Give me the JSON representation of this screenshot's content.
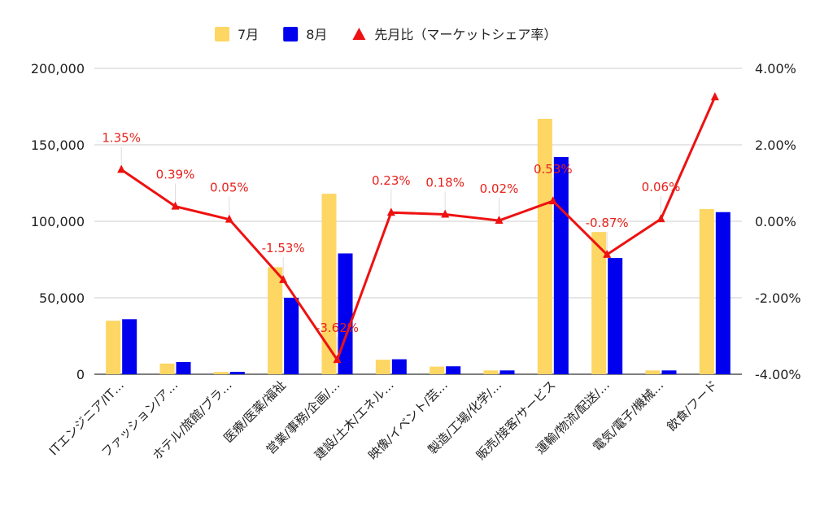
{
  "chart_data": {
    "type": "bar",
    "categories": [
      "ITエンジニア/IT…",
      "ファッション/ア…",
      "ホテル/旅館/ブラ…",
      "医療/医薬/福祉",
      "営業/事務/企画/…",
      "建設/土木/エネル…",
      "映像/イベント/芸…",
      "製造/工場/化学/…",
      "販売/接客/サービス",
      "運輸/物流/配送/…",
      "電気/電子/機械…",
      "飲食/フード"
    ],
    "series": [
      {
        "name": "7月",
        "type": "bar",
        "axis": "left",
        "color": "#fdd663",
        "values": [
          35000,
          7000,
          1500,
          70000,
          118000,
          9500,
          5000,
          2500,
          167000,
          93000,
          2500,
          108000
        ]
      },
      {
        "name": "8月",
        "type": "bar",
        "axis": "left",
        "color": "#0000ee",
        "values": [
          36000,
          8000,
          1600,
          50000,
          79000,
          9800,
          5200,
          2500,
          142000,
          76000,
          2500,
          106000
        ]
      },
      {
        "name": "先月比（マーケットシェア率）",
        "type": "line",
        "axis": "right",
        "color": "#ee1111",
        "marker": "triangle",
        "values": [
          1.35,
          0.39,
          0.05,
          -1.53,
          -3.62,
          0.23,
          0.18,
          0.02,
          0.53,
          -0.87,
          0.06,
          3.25
        ],
        "labels": [
          "1.35%",
          "0.39%",
          "0.05%",
          "-1.53%",
          "-3.62%",
          "0.23%",
          "0.18%",
          "0.02%",
          "0.53%",
          "-0.87%",
          "0.06%",
          ""
        ]
      }
    ],
    "y_left": {
      "ylim": [
        0,
        200000
      ],
      "ticks": [
        "0",
        "50,000",
        "100,000",
        "150,000",
        "200,000"
      ]
    },
    "y_right": {
      "ylim": [
        -4,
        4
      ],
      "ticks": [
        "-4.00%",
        "-2.00%",
        "0.00%",
        "2.00%",
        "4.00%"
      ]
    },
    "grid": true,
    "legend": "top-center"
  }
}
